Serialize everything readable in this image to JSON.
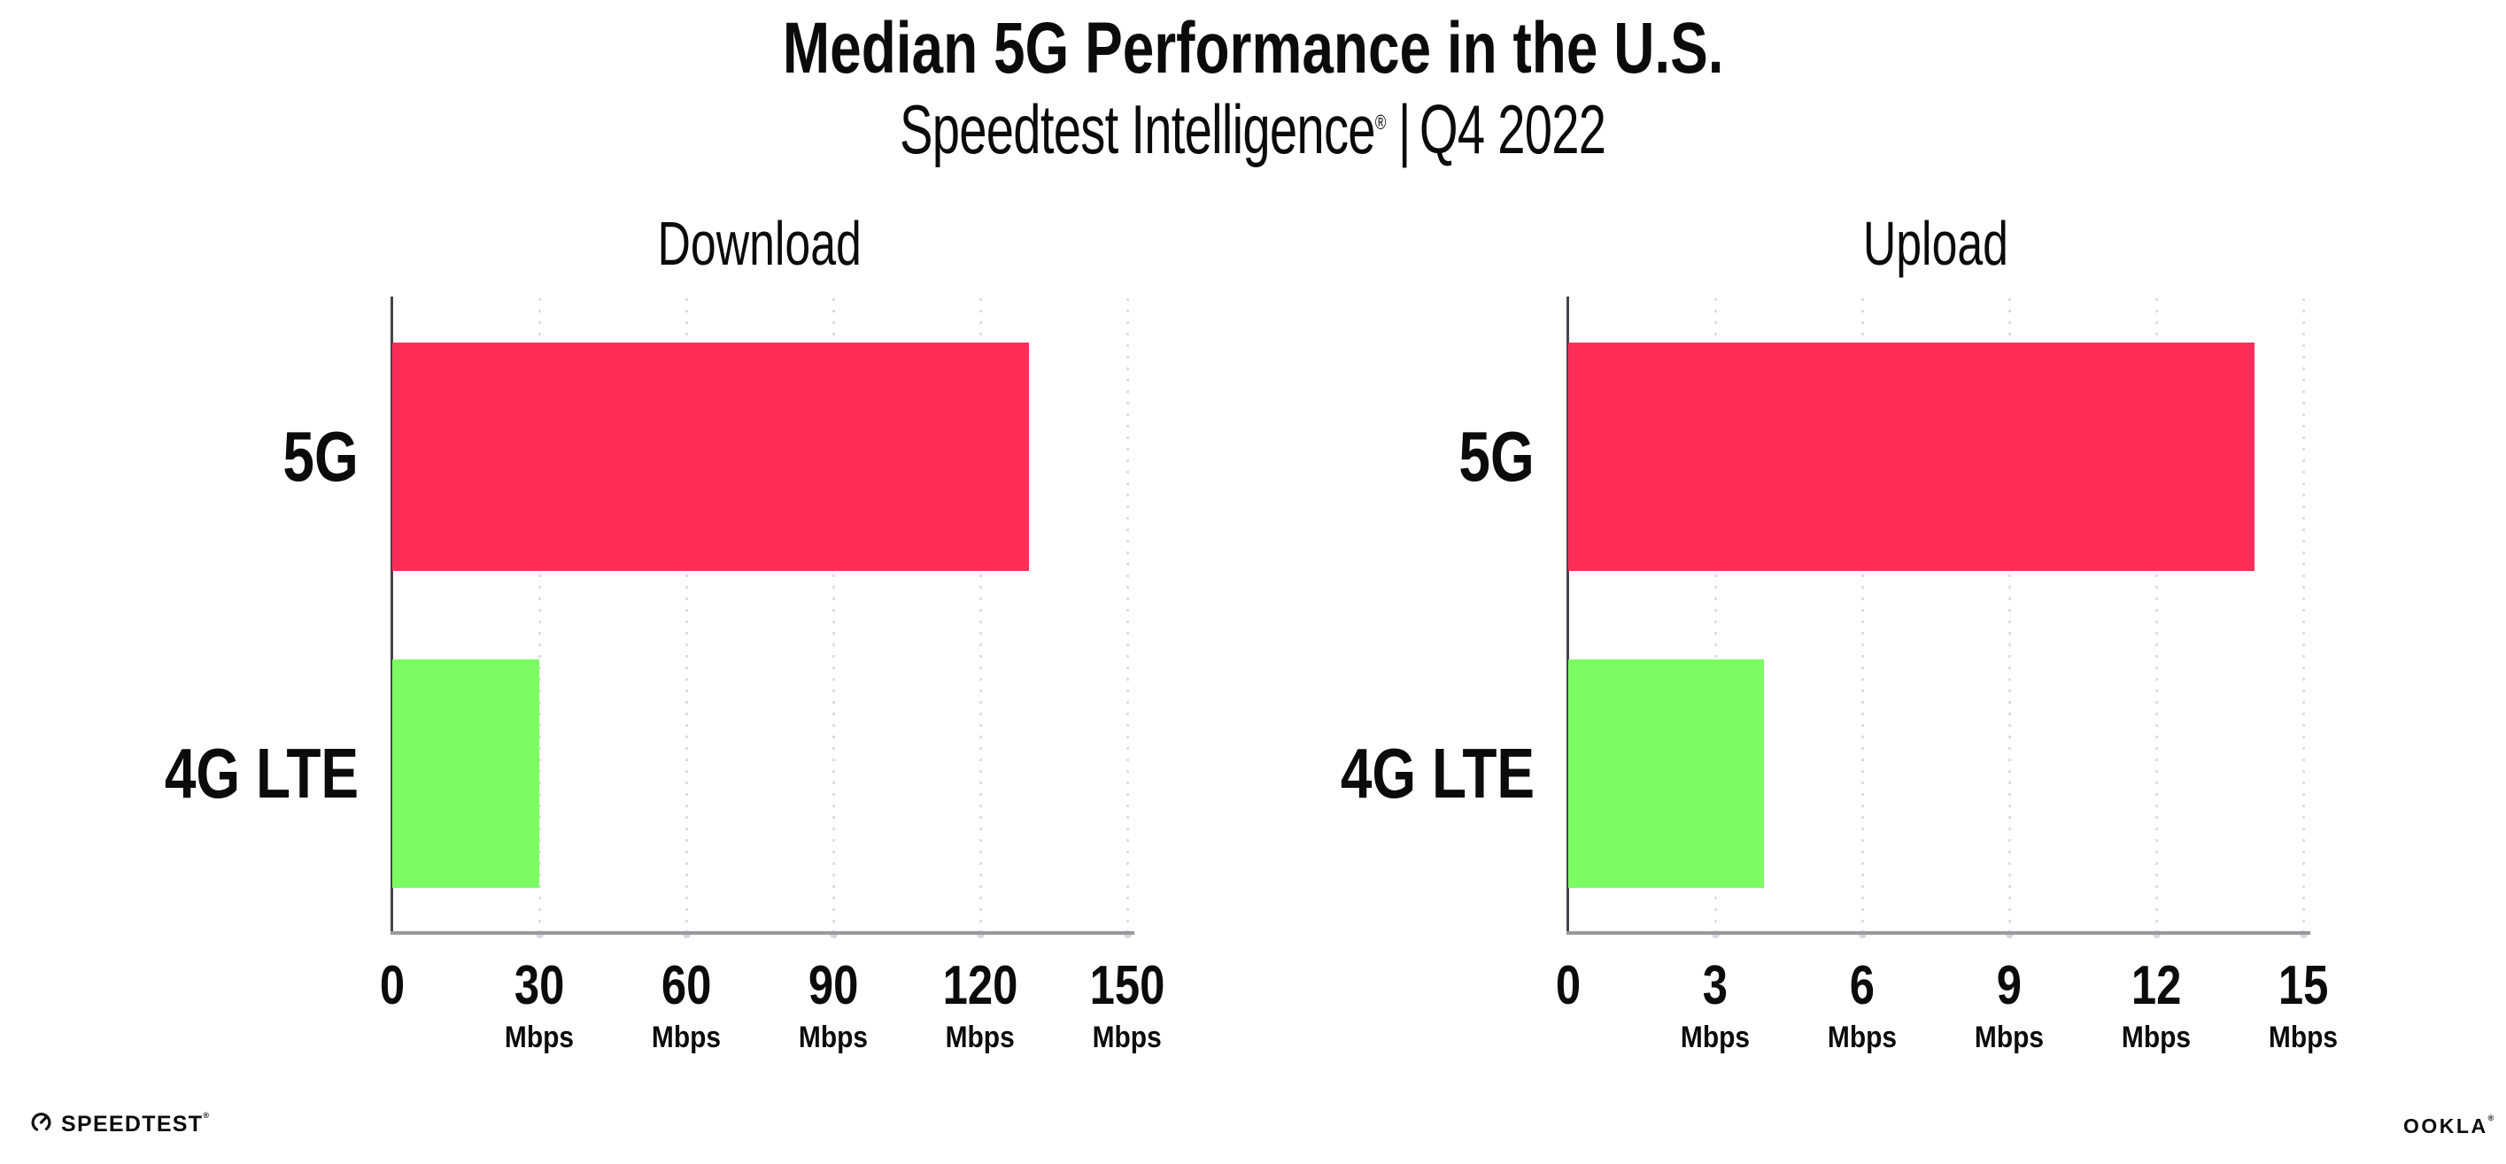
{
  "header": {
    "title": "Median 5G Performance in the U.S.",
    "subtitle_brand": "Speedtest Intelligence",
    "subtitle_trademark": "®",
    "subtitle_separator": "|",
    "subtitle_period": "Q4 2022"
  },
  "chart_data": [
    {
      "type": "bar",
      "orientation": "horizontal",
      "title": "Download",
      "categories": [
        "5G",
        "4G LTE"
      ],
      "values": [
        130,
        30
      ],
      "unit": "Mbps",
      "xlim": [
        0,
        150
      ],
      "xticks": [
        0,
        30,
        60,
        90,
        120,
        150
      ],
      "xtick_units": [
        "",
        "Mbps",
        "Mbps",
        "Mbps",
        "Mbps",
        "Mbps"
      ],
      "bar_colors": [
        "#ff2d58",
        "#7cfb62"
      ],
      "grid": "vertical-dotted",
      "legend": "none"
    },
    {
      "type": "bar",
      "orientation": "horizontal",
      "title": "Upload",
      "categories": [
        "5G",
        "4G LTE"
      ],
      "values": [
        14,
        4
      ],
      "unit": "Mbps",
      "xlim": [
        0,
        15
      ],
      "xticks": [
        0,
        3,
        6,
        9,
        12,
        15
      ],
      "xtick_units": [
        "",
        "Mbps",
        "Mbps",
        "Mbps",
        "Mbps",
        "Mbps"
      ],
      "bar_colors": [
        "#ff2d58",
        "#7cfb62"
      ],
      "grid": "vertical-dotted",
      "legend": "none"
    }
  ],
  "colors": {
    "bar_5g": "#ff2d58",
    "bar_4g_lte": "#7cfb62",
    "gridline": "#dcdde9",
    "axis_y": "#45454e",
    "axis_x": "#9a9a9e",
    "text": "#0b0b0c"
  },
  "footer": {
    "speedtest_logo_text": "SPEEDTEST",
    "speedtest_trademark": "®",
    "ookla_logo_text": "OOKLA",
    "ookla_trademark": "®"
  }
}
